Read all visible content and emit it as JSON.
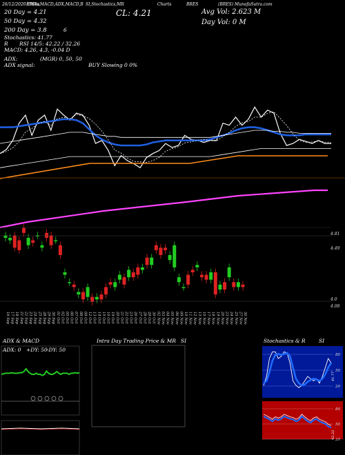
{
  "header": {
    "date_line": "26/12/2020 EMAs",
    "top_line_mid": "EMAs,MACD,ADX,MACD,B",
    "top_line_mid2": "SI,Stochastics,MR",
    "top_line_charts": "Charts",
    "top_line_right": "BRES",
    "top_line_far": "(BRES) MunafaSutra.com",
    "ema20": "20 Day = 4.21",
    "ema50": "50 Day = 4.32",
    "ema200": "200 Day = 3.8",
    "stoch": "Stochastics: 41.77",
    "stoch_extra": "6",
    "rsi_line": "RSI 14/5: 42.22 / 32.26",
    "r_label": "R",
    "macd_line": "MACD: 4.26, 4.3, -0.04 D",
    "adx_line": "ADX:",
    "adx_signal": "ADX signal:",
    "mgr": "(MGR) 0, 50, 50",
    "buy": "BUY Slowing 0 0%",
    "close": "CL: 4.21",
    "avg_vol": "Avg Vol: 2.623 M",
    "day_vol": "Day Vol: 0   M"
  },
  "colors": {
    "price": "#ffffff",
    "ema_fast": "#1f5fe0",
    "ema_slow": "#ffffff",
    "long_ma": "#ff8c1a",
    "magenta_line": "#ff44ff",
    "candle_up": "#22cc22",
    "candle_down": "#dd2222",
    "adx_line": "#22cc22",
    "rsi_band": "#b30000",
    "stoch_bg": "#001a99",
    "stoch_line": "#1e6bff"
  },
  "chart_data": [
    {
      "type": "line",
      "name": "price-emas",
      "series": [
        {
          "name": "",
          "values": [
            3.92,
            3.96,
            4.05,
            4.22,
            4.3,
            4.1,
            4.25,
            4.3,
            4.15,
            4.36,
            4.3,
            4.25,
            4.32,
            4.3,
            4.2,
            4.02,
            4.05,
            3.95,
            3.8,
            3.9,
            3.85,
            3.82,
            3.78,
            3.88,
            3.92,
            3.95,
            4.02,
            3.98,
            4.0,
            4.1,
            4.06,
            4.05,
            4.03,
            4.05,
            4.05,
            4.22,
            4.2,
            4.28,
            4.2,
            4.26,
            4.38,
            4.28,
            4.35,
            4.32,
            4.12,
            4.0,
            4.02,
            4.06,
            4.04,
            4.02,
            4.05,
            4.02,
            4.02
          ]
        },
        {
          "name": "",
          "values": [
            4.18,
            4.18,
            4.18,
            4.19,
            4.2,
            4.21,
            4.22,
            4.23,
            4.24,
            4.25,
            4.26,
            4.26,
            4.25,
            4.22,
            4.16,
            4.1,
            4.06,
            4.03,
            4.01,
            4.0,
            4.0,
            4.0,
            4.0,
            4.01,
            4.03,
            4.04,
            4.05,
            4.05,
            4.05,
            4.05,
            4.05,
            4.05,
            4.05,
            4.06,
            4.08,
            4.1,
            4.12,
            4.15,
            4.17,
            4.18,
            4.18,
            4.17,
            4.15,
            4.13,
            4.11,
            4.1,
            4.1,
            4.1,
            4.11,
            4.11,
            4.11,
            4.11,
            4.11
          ]
        },
        {
          "name": "",
          "values": [
            4.02,
            4.03,
            4.04,
            4.05,
            4.06,
            4.07,
            4.08,
            4.09,
            4.1,
            4.11,
            4.12,
            4.13,
            4.13,
            4.13,
            4.12,
            4.11,
            4.1,
            4.09,
            4.09,
            4.08,
            4.08,
            4.08,
            4.08,
            4.08,
            4.08,
            4.08,
            4.08,
            4.08,
            4.08,
            4.08,
            4.08,
            4.08,
            4.08,
            4.08,
            4.09,
            4.1,
            4.11,
            4.12,
            4.13,
            4.14,
            4.15,
            4.15,
            4.15,
            4.14,
            4.14,
            4.13,
            4.13,
            4.12,
            4.12,
            4.12,
            4.12,
            4.12,
            4.12
          ]
        },
        {
          "name": "",
          "values": [
            3.78,
            3.79,
            3.8,
            3.81,
            3.82,
            3.83,
            3.84,
            3.85,
            3.86,
            3.87,
            3.88,
            3.89,
            3.89,
            3.89,
            3.89,
            3.89,
            3.89,
            3.89,
            3.89,
            3.89,
            3.89,
            3.89,
            3.89,
            3.89,
            3.89,
            3.89,
            3.89,
            3.89,
            3.89,
            3.89,
            3.89,
            3.89,
            3.89,
            3.89,
            3.9,
            3.91,
            3.92,
            3.93,
            3.94,
            3.95,
            3.96,
            3.97,
            3.97,
            3.97,
            3.97,
            3.97,
            3.97,
            3.97,
            3.97,
            3.97,
            3.97,
            3.97,
            3.97
          ]
        }
      ]
    },
    {
      "type": "line",
      "name": "long-ma",
      "series": [
        {
          "name": "",
          "values": [
            1,
            2,
            3,
            4,
            5,
            6,
            7,
            8,
            9,
            10,
            11,
            12,
            13,
            14,
            15,
            16,
            17,
            18,
            19,
            20,
            21,
            22,
            23,
            24,
            25,
            26,
            27,
            28,
            29,
            30,
            31,
            32,
            33,
            34,
            35,
            36,
            37,
            38,
            39,
            40,
            41,
            42,
            43,
            44,
            45,
            46,
            47,
            48,
            49,
            50,
            51,
            52,
            53
          ]
        }
      ]
    },
    {
      "type": "bar",
      "name": "candles",
      "categories": [
        "16 Sep",
        "17 Sep",
        "18 Sep",
        "21 Sep",
        "22 Sep",
        "23 Sep",
        "24 Sep",
        "25 Sep",
        "28 Sep",
        "29 Sep",
        "30 Sep",
        "01 Oct",
        "02 Oct",
        "05 Oct",
        "06 Oct",
        "07 Oct",
        "08 Oct",
        "09 Oct",
        "12 Oct",
        "13 Oct",
        "14 Oct",
        "15 Oct",
        "16 Oct",
        "19 Oct",
        "20 Oct",
        "21 Oct",
        "22 Oct",
        "23 Oct",
        "26 Oct",
        "27 Oct",
        "28 Oct",
        "29 Oct",
        "30 Oct",
        "02 Nov",
        "03 Nov",
        "04 Nov",
        "05 Nov",
        "06 Nov",
        "09 Nov",
        "10 Nov",
        "11 Nov",
        "12 Nov",
        "13 Nov",
        "16 Nov",
        "17 Nov",
        "18 Nov",
        "19 Nov",
        "20 Nov",
        "23 Nov",
        "24 Nov",
        "25 Nov",
        "27 Nov",
        "30 Nov"
      ],
      "open": [
        4.46,
        4.44,
        4.48,
        4.44,
        4.54,
        4.4,
        4.44,
        4.48,
        4.38,
        4.5,
        4.48,
        4.44,
        4.4,
        4.16,
        4.1,
        4.08,
        4.0,
        4.02,
        3.98,
        3.98,
        3.96,
        4.0,
        4.06,
        4.1,
        4.06,
        4.12,
        4.14,
        4.14,
        4.18,
        4.22,
        4.2,
        4.3,
        4.24,
        4.4,
        4.38,
        4.38,
        4.28,
        4.22,
        4.1,
        4.06,
        4.16,
        4.2,
        4.22,
        4.16,
        4.16,
        4.12,
        4.18,
        4.04,
        4.1,
        4.14,
        4.1,
        4.06,
        4.08
      ],
      "close": [
        4.48,
        4.46,
        4.38,
        4.36,
        4.5,
        4.46,
        4.42,
        4.48,
        4.4,
        4.46,
        4.4,
        4.44,
        4.32,
        4.18,
        4.1,
        4.06,
        4.02,
        3.96,
        4.06,
        3.94,
        3.98,
        3.96,
        4.0,
        4.08,
        4.1,
        4.16,
        4.08,
        4.2,
        4.14,
        4.16,
        4.22,
        4.24,
        4.3,
        4.36,
        4.32,
        4.36,
        4.32,
        4.4,
        4.14,
        4.06,
        4.08,
        4.18,
        4.24,
        4.14,
        4.12,
        4.18,
        4.0,
        4.08,
        4.04,
        4.22,
        4.06,
        4.1,
        4.06
      ],
      "ylabels": [
        "4.81",
        "4.49",
        "4.0",
        "4.08"
      ]
    },
    {
      "type": "line",
      "name": "adx",
      "series": [
        {
          "name": "",
          "values": [
            50,
            51,
            52,
            52,
            52,
            53,
            52,
            52,
            52,
            53,
            53,
            55,
            60,
            55,
            52,
            50,
            50,
            52,
            50,
            50,
            48,
            50,
            56,
            52,
            50,
            50,
            52,
            55,
            52,
            50,
            52,
            52,
            52,
            50,
            52,
            52,
            53,
            52,
            53
          ]
        }
      ],
      "ylabels": [
        "ADX: 0",
        "+DY: 50",
        "-DY: 50"
      ]
    },
    {
      "type": "line",
      "name": "stochastics",
      "series": [
        {
          "name": "",
          "values": [
            20,
            40,
            80,
            95,
            95,
            80,
            85,
            95,
            92,
            70,
            30,
            20,
            15,
            20,
            30,
            40,
            35,
            30,
            35,
            25,
            40,
            60,
            80,
            70
          ]
        },
        {
          "name": "",
          "values": [
            25,
            30,
            50,
            75,
            88,
            90,
            88,
            90,
            92,
            85,
            60,
            35,
            25,
            20,
            22,
            28,
            32,
            35,
            33,
            30,
            35,
            45,
            60,
            70
          ]
        }
      ],
      "ylabels": [
        "80",
        "50",
        "20"
      ],
      "value_label": "41.77"
    },
    {
      "type": "line",
      "name": "rsi",
      "series": [
        {
          "name": "",
          "values": [
            60,
            58,
            55,
            52,
            56,
            54,
            56,
            60,
            58,
            56,
            55,
            52,
            54,
            60,
            56,
            52,
            50,
            54,
            56,
            52,
            50,
            48,
            44,
            42
          ]
        }
      ],
      "ylabels": [
        "80",
        "50",
        "20"
      ],
      "value_label": "42.22"
    }
  ],
  "panels": {
    "adx_title": "ADX & MACD",
    "intraday_title": "Intra Day Trading Price & MR",
    "intraday_si": "SI",
    "stoch_title": "Stochastics & R",
    "stoch_si": "SI"
  }
}
